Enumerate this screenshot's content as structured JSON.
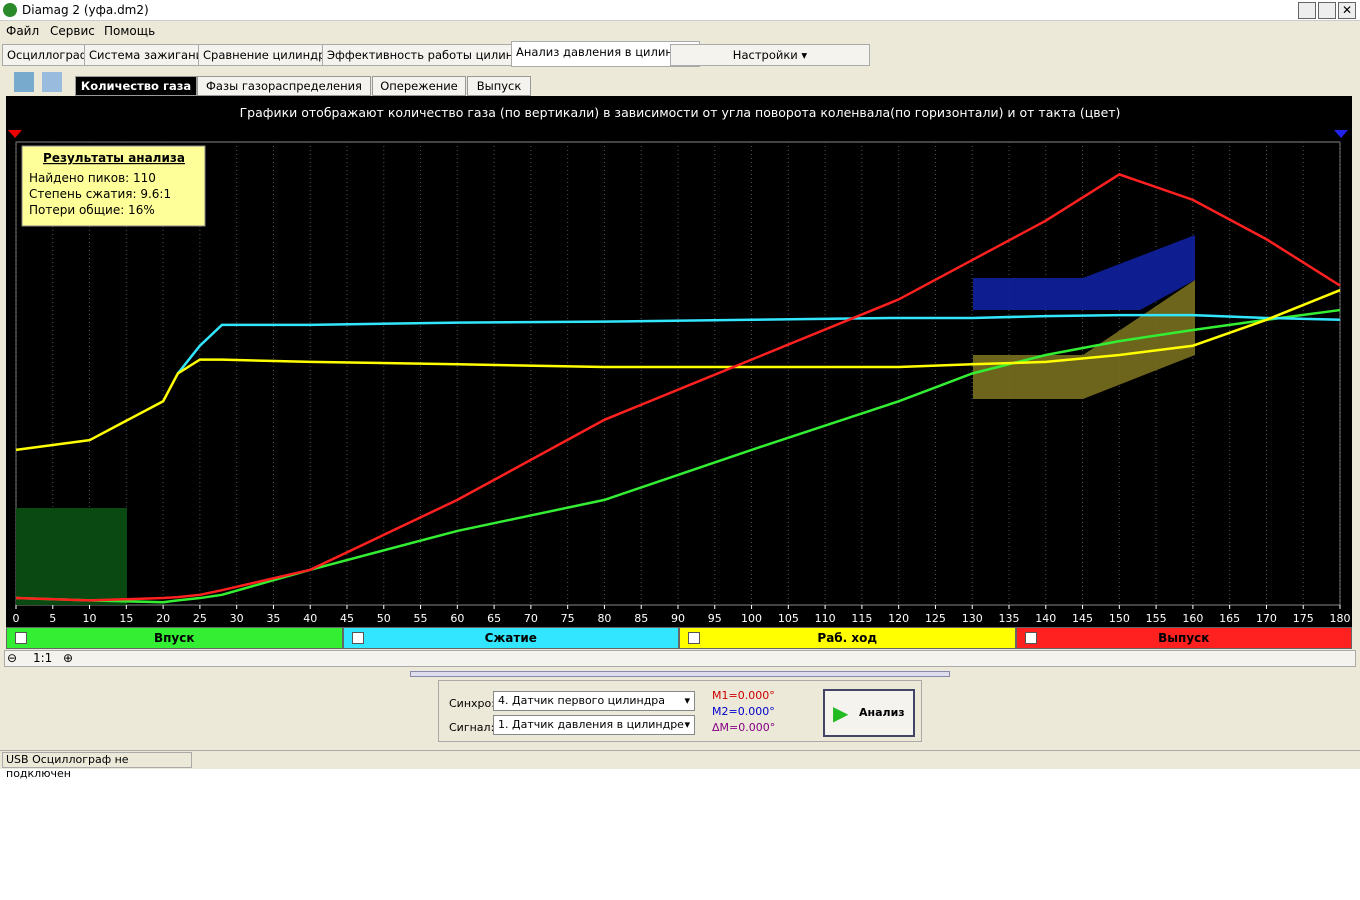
{
  "window": {
    "title": "Diamag 2 (уфа.dm2)"
  },
  "menu": [
    "Файл",
    "Сервис",
    "Помощь"
  ],
  "tabs": [
    "Осциллограф",
    "Система зажигания",
    "Сравнение цилиндров",
    "Эффективность работы цилиндров",
    "Анализ давления в цилиндре"
  ],
  "settings_button": "Настройки",
  "subtabs": [
    "Количество газа",
    "Фазы газораспределения",
    "Опережение",
    "Выпуск"
  ],
  "results": {
    "title": "Результаты анализа",
    "lines": [
      "Найдено пиков: 110",
      "Степень сжатия: 9.6:1",
      "Потери общие: 16%"
    ]
  },
  "zoom": "1:1",
  "controls": {
    "sync_label": "Синхро:",
    "sync_value": "4.  Датчик первого цилиндра",
    "signal_label": "Сигнал:",
    "signal_value": "1.  Датчик давления в цилиндре",
    "m1": "M1=0.000°",
    "m2": "M2=0.000°",
    "dm": "ΔM=0.000°",
    "analyze": "Анализ"
  },
  "status": "USB Осциллограф не подключен",
  "chart_data": {
    "type": "line",
    "title": "Графики отображают количество газа (по вертикали) в зависимости от угла поворота коленвала(по горизонтали) и от такта (цвет)",
    "x": [
      0,
      10,
      20,
      22,
      25,
      28,
      40,
      60,
      80,
      100,
      120,
      130,
      140,
      150,
      160,
      170,
      180
    ],
    "xlim": [
      0,
      180
    ],
    "xticks": [
      0,
      5,
      10,
      15,
      20,
      25,
      30,
      35,
      40,
      45,
      50,
      55,
      60,
      65,
      70,
      75,
      80,
      85,
      90,
      95,
      100,
      105,
      110,
      115,
      120,
      125,
      130,
      135,
      140,
      145,
      150,
      155,
      160,
      165,
      170,
      175,
      180
    ],
    "ylim": [
      0,
      100
    ],
    "grid": true,
    "series": [
      {
        "name": "Впуск",
        "color": "#33ee33",
        "values": [
          1.5,
          1,
          0.6,
          1,
          1.5,
          2.2,
          7.6,
          16,
          22.7,
          33.5,
          44,
          50,
          54,
          57,
          59.4,
          61.6,
          63.7
        ]
      },
      {
        "name": "Сжатие",
        "color": "#33e6ff",
        "values": [
          null,
          null,
          null,
          50,
          56,
          60.5,
          60.5,
          61,
          61.2,
          61.6,
          62,
          62,
          62.4,
          62.6,
          62.6,
          62,
          61.6
        ]
      },
      {
        "name": "Раб. ход",
        "color": "#ffff00",
        "values": [
          33.5,
          35.6,
          44,
          50,
          53,
          53,
          52.5,
          52,
          51.4,
          51.4,
          51.4,
          52,
          52.5,
          54,
          56,
          61.6,
          68
        ]
      },
      {
        "name": "Выпуск",
        "color": "#ff2020",
        "values": [
          1.5,
          1,
          1.5,
          1.7,
          2.2,
          3.2,
          7.6,
          22.7,
          40,
          53,
          66,
          74.5,
          83,
          93,
          87.5,
          79,
          69
        ]
      }
    ]
  }
}
